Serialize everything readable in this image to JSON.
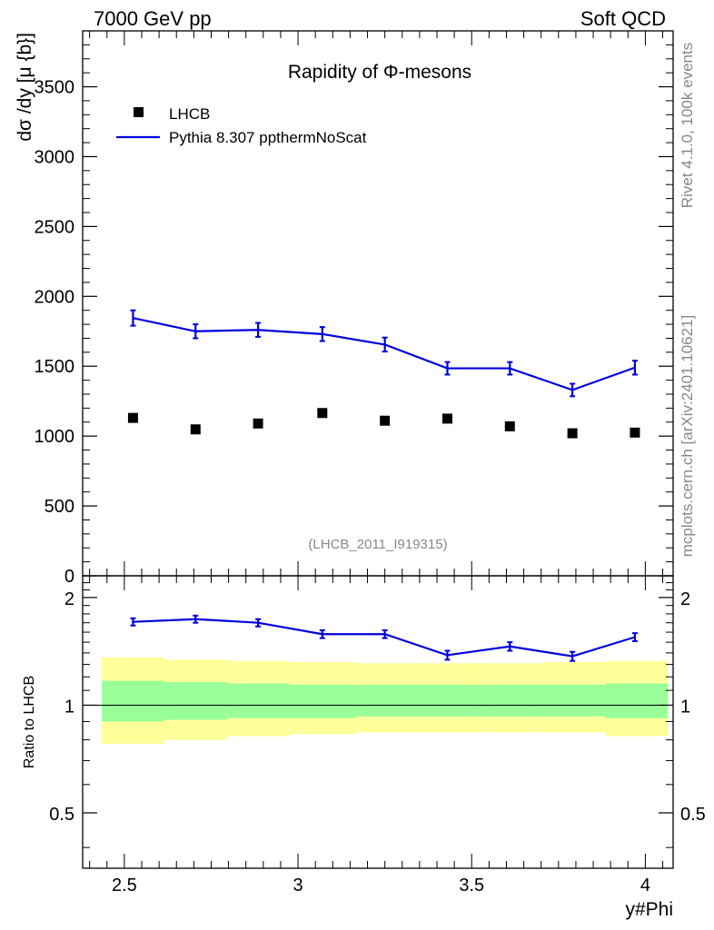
{
  "header": {
    "left": "7000 GeV pp",
    "right": "Soft QCD"
  },
  "side_text": {
    "rivet": "Rivet 4.1.0,  100k events",
    "mcplots": "mcplots.cern.ch [arXiv:2401.10621]"
  },
  "colors": {
    "mc": "#0000dd",
    "data": "#000000",
    "band_inner": "#99ff99",
    "band_outer": "#ffff99"
  },
  "chart_data": [
    {
      "type": "scatter",
      "panel": "main",
      "title": "Rapidity of Φ-mesons",
      "ylabel": "dσ /dy [μ {b}]",
      "xlabel": "",
      "xlim": [
        2.38,
        4.08
      ],
      "ylim": [
        0,
        3900
      ],
      "yticks": [
        0,
        500,
        1000,
        1500,
        2000,
        2500,
        3000,
        3500
      ],
      "ytick_labels": [
        "0",
        "500",
        "1000",
        "1500",
        "2000",
        "2500",
        "3000",
        "3500"
      ],
      "watermark": "(LHCB_2011_I919315)",
      "legend_position": "top-left",
      "series": [
        {
          "name": "LHCB",
          "style": "markers",
          "x": [
            2.525,
            2.705,
            2.885,
            3.07,
            3.25,
            3.43,
            3.61,
            3.79,
            3.97
          ],
          "values": [
            1130,
            1048,
            1090,
            1165,
            1110,
            1125,
            1070,
            1020,
            1025
          ]
        },
        {
          "name": "Pythia 8.307 ppthermNoScat",
          "style": "line",
          "x": [
            2.525,
            2.705,
            2.885,
            3.07,
            3.25,
            3.43,
            3.61,
            3.79,
            3.97
          ],
          "values": [
            1845,
            1750,
            1760,
            1730,
            1655,
            1485,
            1485,
            1330,
            1490
          ],
          "errors": [
            55,
            50,
            50,
            50,
            50,
            45,
            45,
            45,
            50
          ]
        }
      ]
    },
    {
      "type": "line",
      "panel": "ratio",
      "ylabel": "Ratio to LHCB",
      "xlabel": "y#Phi",
      "xlim": [
        2.38,
        4.08
      ],
      "ylim": [
        0.35,
        2.3
      ],
      "xticks": [
        2.5,
        3,
        3.5,
        4
      ],
      "xtick_labels": [
        "2.5",
        "3",
        "3.5",
        "4"
      ],
      "yticks": [
        0.5,
        1,
        2
      ],
      "ytick_labels": [
        "0.5",
        "1",
        "2"
      ],
      "series": [
        {
          "name": "Pythia 8.307 ppthermNoScat / LHCB",
          "x": [
            2.525,
            2.705,
            2.885,
            3.07,
            3.25,
            3.43,
            3.61,
            3.79,
            3.97
          ],
          "values": [
            1.71,
            1.74,
            1.7,
            1.58,
            1.58,
            1.38,
            1.46,
            1.37,
            1.55
          ],
          "errors": [
            0.04,
            0.04,
            0.04,
            0.04,
            0.04,
            0.04,
            0.04,
            0.04,
            0.04
          ]
        }
      ],
      "bands": {
        "edges": [
          2.435,
          2.615,
          2.795,
          2.975,
          3.165,
          3.345,
          3.525,
          3.705,
          3.885,
          4.065
        ],
        "inner_low": [
          0.9,
          0.91,
          0.92,
          0.92,
          0.93,
          0.93,
          0.93,
          0.93,
          0.92
        ],
        "inner_high": [
          1.17,
          1.16,
          1.15,
          1.14,
          1.14,
          1.14,
          1.14,
          1.14,
          1.15
        ],
        "outer_low": [
          0.78,
          0.8,
          0.82,
          0.83,
          0.84,
          0.84,
          0.84,
          0.84,
          0.82
        ],
        "outer_high": [
          1.36,
          1.34,
          1.33,
          1.32,
          1.31,
          1.31,
          1.31,
          1.32,
          1.33
        ]
      }
    }
  ]
}
